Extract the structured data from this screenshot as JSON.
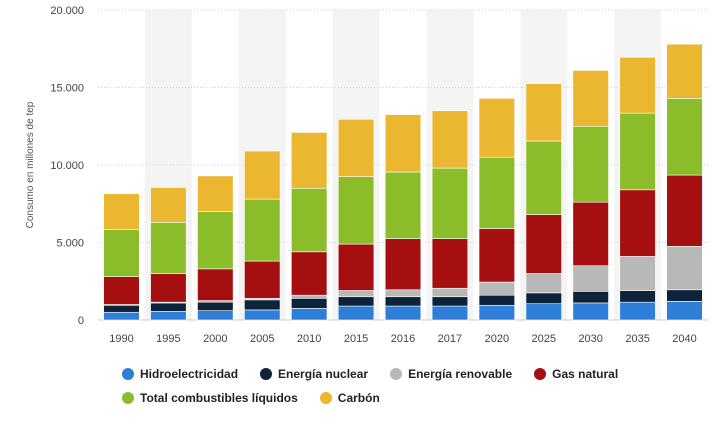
{
  "chart_data": {
    "type": "bar",
    "stacked": true,
    "title": "",
    "xlabel": "",
    "ylabel": "Consumo en millones de tep",
    "ylim": [
      0,
      20000
    ],
    "yticks": [
      0,
      5000,
      10000,
      15000,
      20000
    ],
    "ytick_labels": [
      "0",
      "5.000",
      "10.000",
      "15.000",
      "20.000"
    ],
    "categories": [
      "1990",
      "1995",
      "2000",
      "2005",
      "2010",
      "2015",
      "2016",
      "2017",
      "2020",
      "2025",
      "2030",
      "2035",
      "2040"
    ],
    "series": [
      {
        "name": "Hidroelectricidad",
        "color": "#2f7ed8",
        "values": [
          500,
          550,
          600,
          650,
          750,
          900,
          900,
          900,
          950,
          1050,
          1100,
          1150,
          1200
        ]
      },
      {
        "name": "Energía nuclear",
        "color": "#0d233a",
        "values": [
          450,
          550,
          550,
          650,
          650,
          600,
          600,
          600,
          650,
          700,
          750,
          750,
          750
        ]
      },
      {
        "name": "Energía renovable",
        "color": "#b8b8b8",
        "values": [
          50,
          50,
          100,
          100,
          200,
          400,
          450,
          550,
          850,
          1250,
          1650,
          2200,
          2800
        ]
      },
      {
        "name": "Gas natural",
        "color": "#a50f0f",
        "values": [
          1800,
          1850,
          2050,
          2400,
          2800,
          3000,
          3300,
          3200,
          3450,
          3800,
          4100,
          4300,
          4600
        ]
      },
      {
        "name": "Total combustibles líquidos",
        "color": "#8bbd2a",
        "values": [
          3050,
          3300,
          3700,
          4000,
          4100,
          4350,
          4300,
          4550,
          4600,
          4750,
          4900,
          4950,
          4950
        ]
      },
      {
        "name": "Carbón",
        "color": "#ebb731",
        "values": [
          2300,
          2250,
          2300,
          3100,
          3600,
          3700,
          3700,
          3700,
          3800,
          3700,
          3600,
          3600,
          3500
        ]
      }
    ]
  }
}
